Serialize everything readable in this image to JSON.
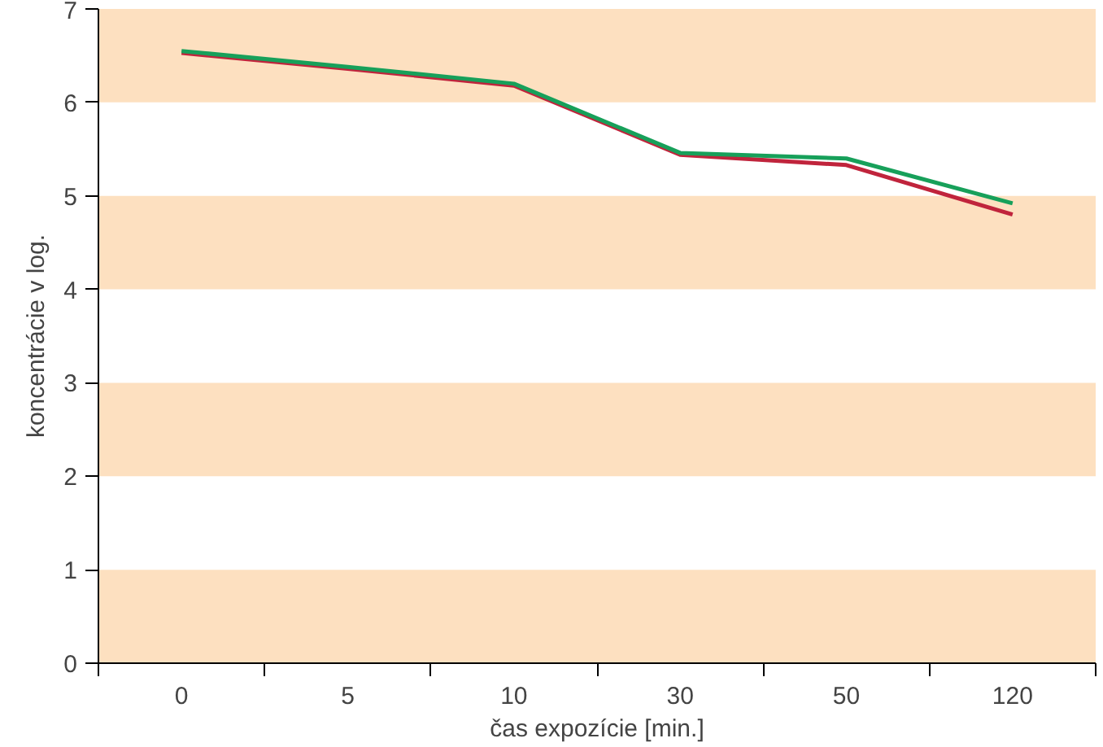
{
  "chart_data": {
    "type": "line",
    "xlabel": "čas expozície [min.]",
    "ylabel": "koncentrácie v log.",
    "categories": [
      "0",
      "5",
      "10",
      "30",
      "50",
      "120"
    ],
    "series": [
      {
        "color": "#c0243c",
        "values": [
          6.53,
          6.36,
          6.18,
          5.44,
          5.33,
          4.8
        ]
      },
      {
        "color": "#17a05a",
        "values": [
          6.55,
          6.38,
          6.2,
          5.46,
          5.4,
          4.92
        ]
      }
    ],
    "ylim": [
      0,
      7
    ],
    "yticks": [
      0,
      1,
      2,
      3,
      4,
      5,
      6,
      7
    ],
    "grid": false,
    "marker": "none",
    "line_style": "solid",
    "bands": [
      {
        "axis": "y",
        "from": 0,
        "to": 1,
        "color": "#fde0c0"
      },
      {
        "axis": "y",
        "from": 2,
        "to": 3,
        "color": "#fde0c0"
      },
      {
        "axis": "y",
        "from": 4,
        "to": 5,
        "color": "#fde0c0"
      },
      {
        "axis": "y",
        "from": 6,
        "to": 7,
        "color": "#fde0c0"
      }
    ]
  }
}
